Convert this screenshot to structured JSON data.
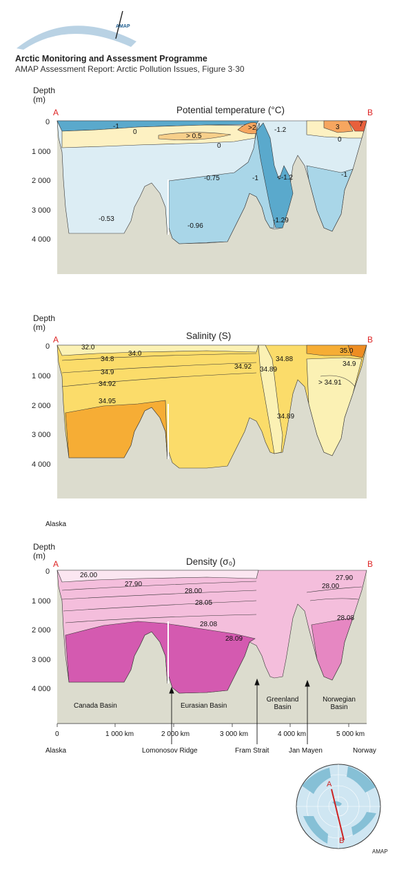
{
  "header": {
    "logo_text": "AMAP",
    "title": "Arctic Monitoring and Assessment Programme",
    "subtitle": "AMAP Assessment Report: Arctic Pollution Issues, Figure 3·30"
  },
  "chart_data": [
    {
      "type": "contour-section",
      "title": "Potential temperature (°C)",
      "ylabel_line1": "Depth",
      "ylabel_line2": "(m)",
      "y_ticks": [
        "0",
        "1 000",
        "2 000",
        "3 000",
        "4 000"
      ],
      "ylim": [
        0,
        5000
      ],
      "start_label": "A",
      "end_label": "B",
      "contour_labels": [
        "-1",
        "0",
        "> 0.5",
        "0",
        ">2",
        "-1.2",
        "3",
        "0",
        "7",
        "-0.75",
        "-1",
        "<-1.2",
        "-1",
        "-0.53",
        "-0.96",
        "-1.29"
      ],
      "colors": {
        "cold": "#5aa9cc",
        "cool": "#a9d6e8",
        "pale": "#dcedf4",
        "warm": "#fdf1c2",
        "hot": "#f6a65f",
        "hottest": "#e8603c"
      }
    },
    {
      "type": "contour-section",
      "title": "Salinity (S)",
      "ylabel_line1": "Depth",
      "ylabel_line2": "(m)",
      "y_ticks": [
        "0",
        "1 000",
        "2 000",
        "3 000",
        "4 000"
      ],
      "ylim": [
        0,
        5000
      ],
      "start_label": "A",
      "end_label": "B",
      "contour_labels": [
        "32.0",
        "34.0",
        "34.8",
        "34.9",
        "34.92",
        "34.95",
        "34.92",
        "34.88",
        "35.0",
        "34.89",
        "34.9",
        "> 34.91",
        "34.89"
      ],
      "colors": {
        "low": "#fbf1b4",
        "mid": "#fbdc6a",
        "high": "#f6ad35",
        "highest": "#ee8d22"
      }
    },
    {
      "type": "contour-section",
      "title": "Density (σ₀)",
      "ylabel_line1": "Depth",
      "ylabel_line2": "(m)",
      "y_ticks": [
        "0",
        "1 000",
        "2 000",
        "3 000",
        "4 000"
      ],
      "ylim": [
        0,
        5000
      ],
      "start_label": "A",
      "end_label": "B",
      "contour_labels": [
        "26.00",
        "27.90",
        "28.00",
        "28.05",
        "28.08",
        "28.09",
        "27.90",
        "28.00",
        "28.08"
      ],
      "basins": [
        "Canada Basin",
        "Eurasian Basin",
        "Greenland Basin",
        "Norwegian Basin"
      ],
      "x_ticks": [
        "0",
        "1 000 km",
        "2 000 km",
        "3 000 km",
        "4 000 km",
        "5 000 km"
      ],
      "xlim": [
        0,
        5300
      ],
      "colors": {
        "light": "#fbe6f1",
        "mid": "#f4bedc",
        "deep": "#e687c2",
        "deepest": "#d45ab0"
      }
    }
  ],
  "labels": {
    "alaska_note": "Alaska",
    "x_start": "Alaska",
    "x_end": "Norway",
    "features": [
      "Lomonosov Ridge",
      "Fram Strait",
      "Jan Mayen"
    ],
    "map_a": "A",
    "map_b": "B",
    "credit": "AMAP"
  }
}
